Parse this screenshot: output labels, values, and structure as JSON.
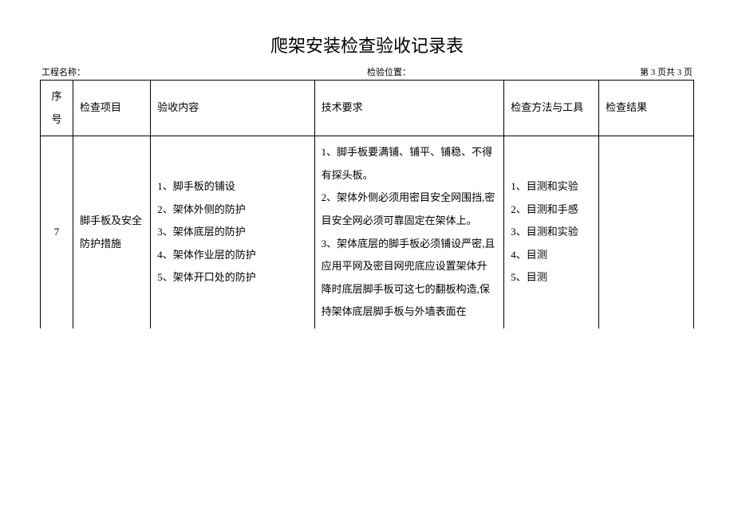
{
  "title": "爬架安装检查验收记录表",
  "header": {
    "project_label": "工程名称：",
    "position_label": "检验位置：",
    "page_info": "第 3 页共 3 页"
  },
  "columns": {
    "seq": "序号",
    "item": "检查项目",
    "content": "验收内容",
    "tech": "技术要求",
    "method": "检查方法与工具",
    "result": "检查结果"
  },
  "row": {
    "seq": "7",
    "item": "脚手板及安全防护措施",
    "content": "1、脚手板的铺设\n2、架体外侧的防护\n3、架体底层的防护\n4、架体作业层的防护\n5、架体开口处的防护",
    "tech": "1、脚手板要满铺、铺平、铺稳、不得有探头板。\n2、架体外侧必须用密目安全网围挡,密目安全网必须可靠固定在架体上。\n3、架体底层的脚手板必须铺设严密,且应用平网及密目网兜底应设置架体升降时底层脚手板可这七的翻板构造,保持架体底层脚手板与外墙表面在",
    "method": "1、目测和实验\n2、目测和手感\n3、目测和实验\n4、目测\n5、目测",
    "result": ""
  },
  "style": {
    "background_color": "#ffffff",
    "border_color": "#000000",
    "title_fontsize": 22,
    "body_fontsize": 13,
    "header_fontsize": 11,
    "line_height": 2.2,
    "font_family": "SimSun"
  }
}
